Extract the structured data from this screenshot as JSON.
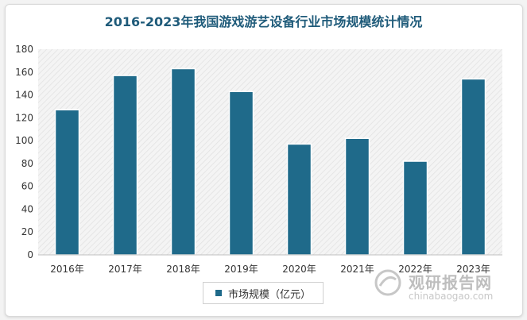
{
  "chart_data": {
    "type": "bar",
    "title": "2016-2023年我国游戏游艺设备行业市场规模统计情况",
    "categories": [
      "2016年",
      "2017年",
      "2018年",
      "2019年",
      "2020年",
      "2021年",
      "2022年",
      "2023年"
    ],
    "series": [
      {
        "name": "市场规模（亿元）",
        "values": [
          127,
          157,
          163,
          143,
          97,
          102,
          82,
          154
        ]
      }
    ],
    "ylim": [
      0,
      180
    ],
    "yticks": [
      0,
      20,
      40,
      60,
      80,
      100,
      120,
      140,
      160,
      180
    ],
    "grid": false,
    "plot_background": "hatched light gray",
    "legend_position": "bottom",
    "bar_color": "#1f6a8a"
  },
  "watermark": {
    "name": "观研报告网",
    "url": "chinabaogao.com"
  },
  "colors": {
    "title": "#1f5b7a",
    "bar": "#1f6a8a"
  }
}
